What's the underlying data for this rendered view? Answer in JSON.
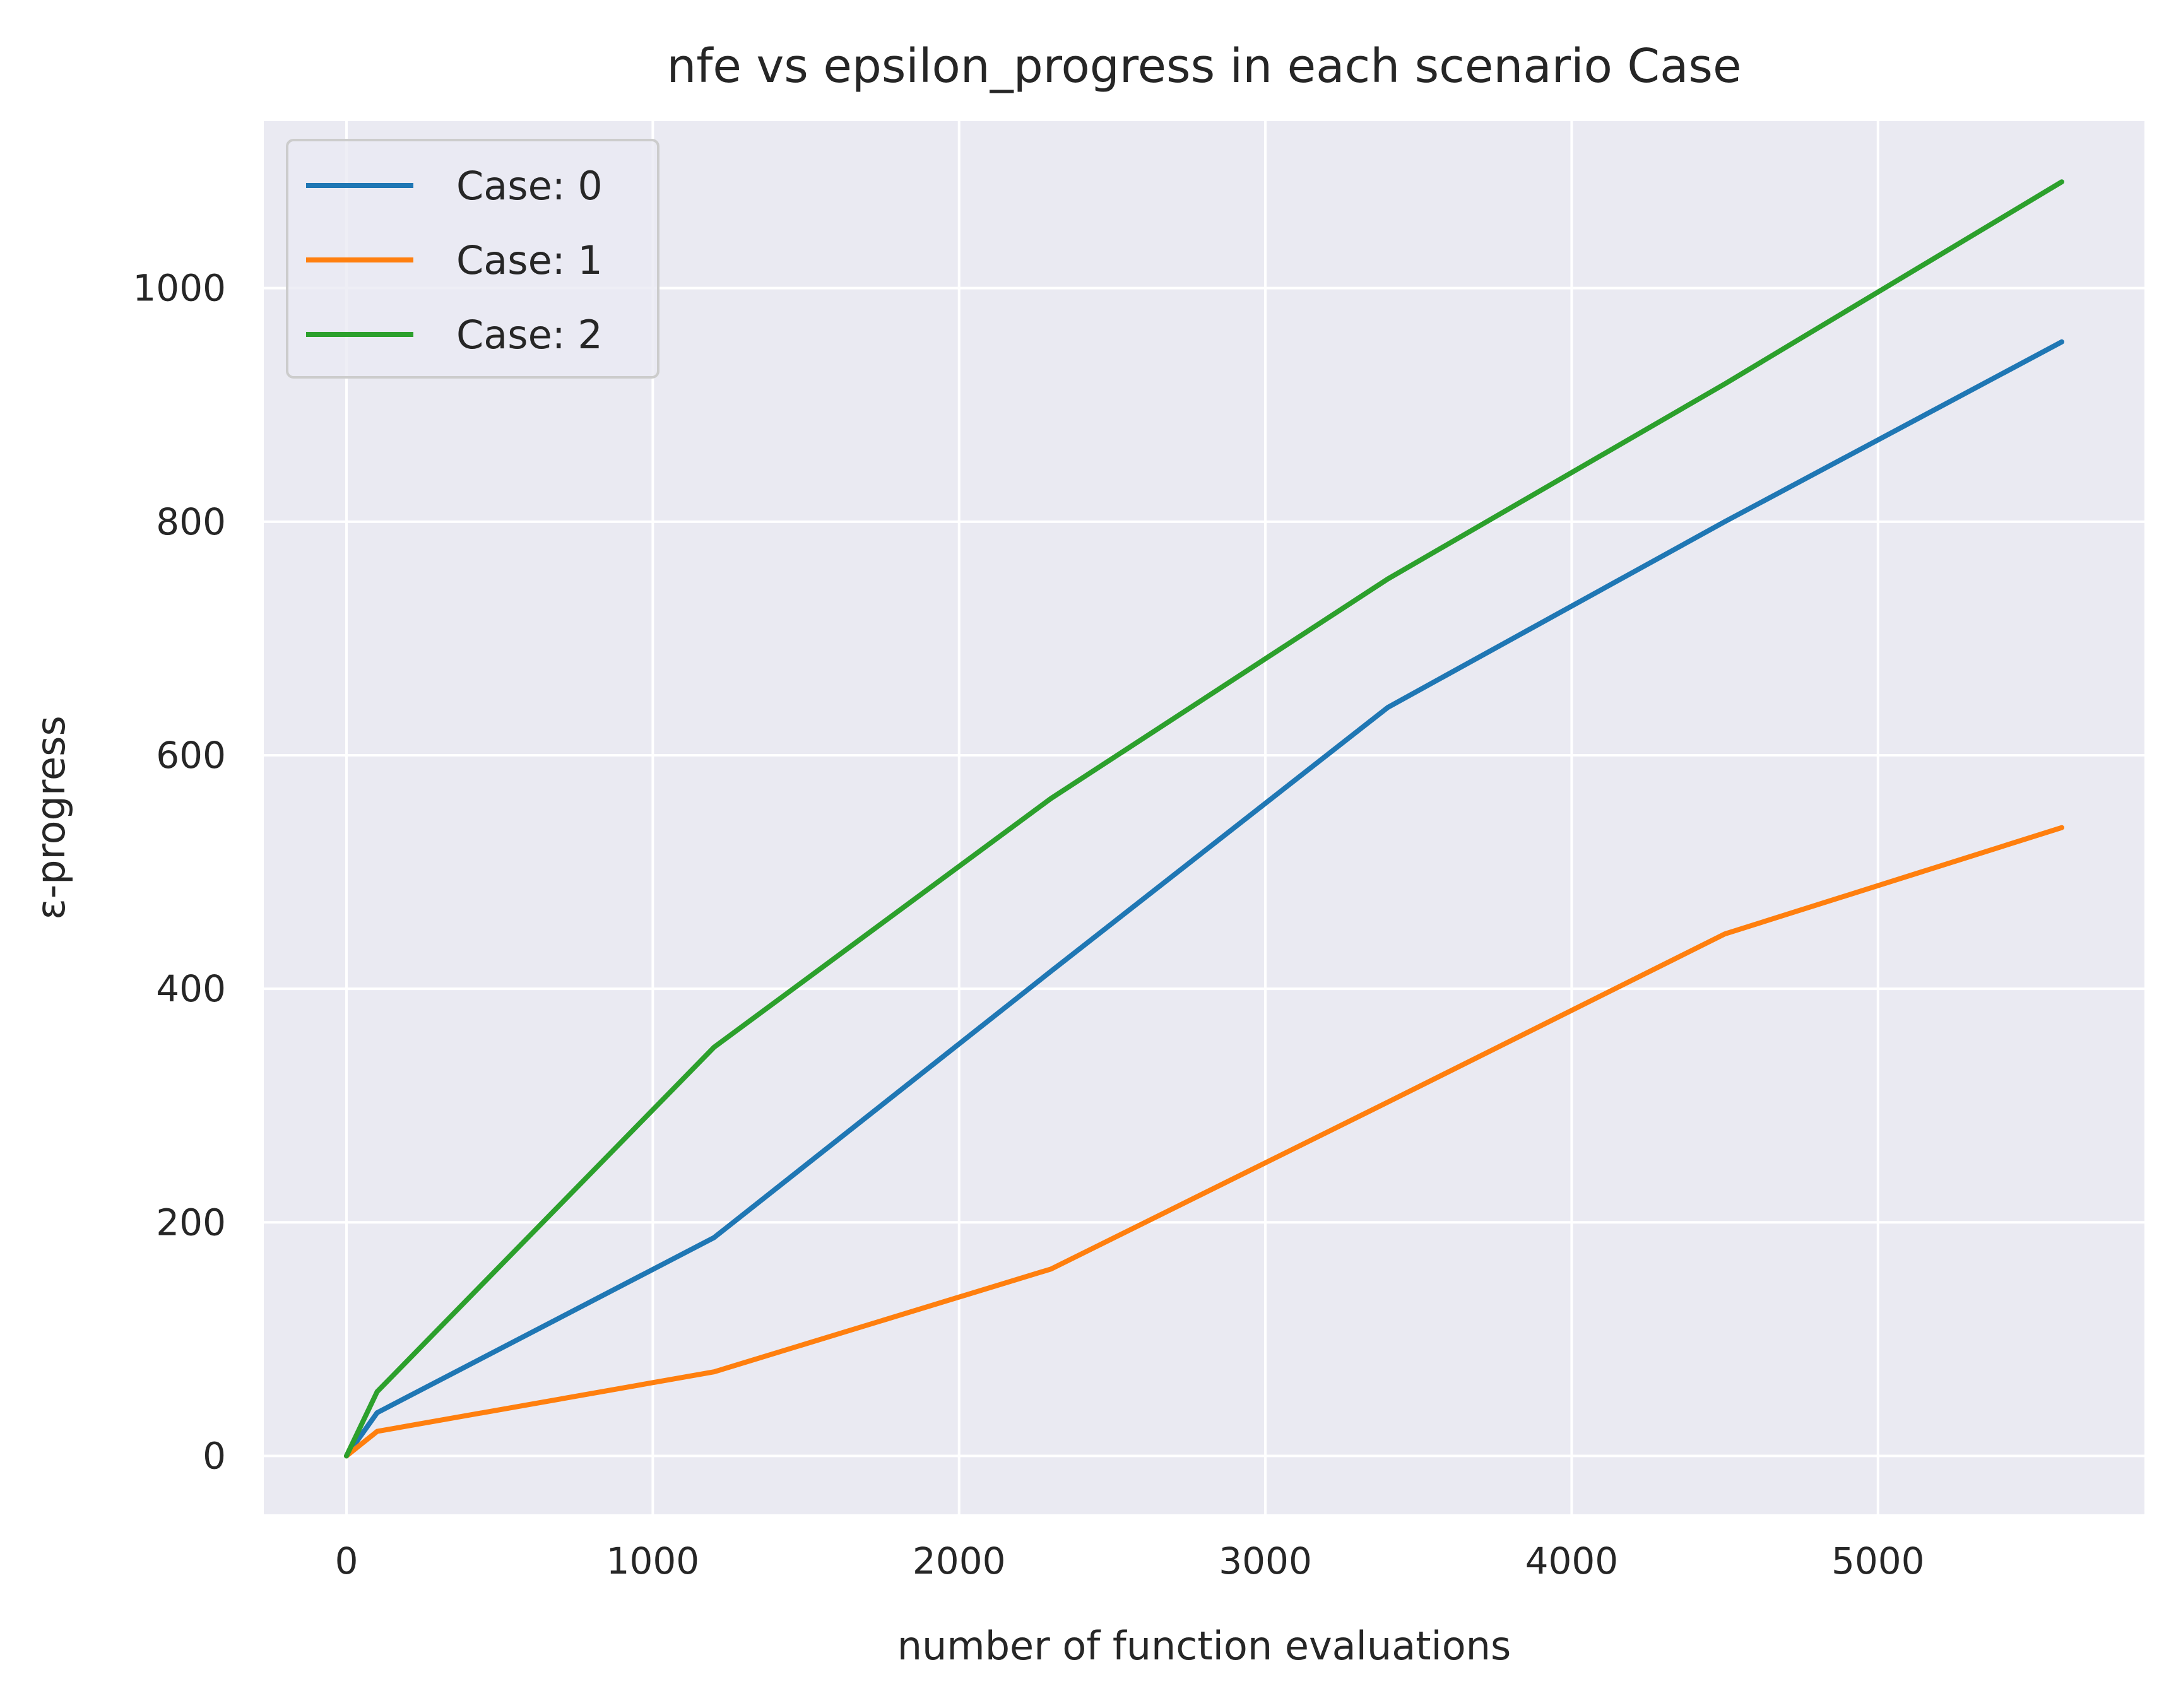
{
  "chart_data": {
    "type": "line",
    "title": "nfe vs epsilon_progress in each scenario Case",
    "xlabel": "number of function evaluations",
    "ylabel": "ε-progress",
    "xlim": [
      -270,
      5870
    ],
    "ylim": [
      -50,
      1143
    ],
    "xticks": [
      0,
      1000,
      2000,
      3000,
      4000,
      5000
    ],
    "yticks": [
      0,
      200,
      400,
      600,
      800,
      1000
    ],
    "grid": true,
    "legend_position": "top-left",
    "series": [
      {
        "name": "Case: 0",
        "color": "#1f77b4",
        "x": [
          0,
          100,
          1200,
          2300,
          3400,
          4500,
          5600
        ],
        "y": [
          0,
          37,
          187,
          415,
          641,
          800,
          954
        ]
      },
      {
        "name": "Case: 1",
        "color": "#ff7f0e",
        "x": [
          0,
          100,
          1200,
          2300,
          3400,
          4500,
          5600
        ],
        "y": [
          0,
          21,
          72,
          160,
          303,
          447,
          538
        ]
      },
      {
        "name": "Case: 2",
        "color": "#2ca02c",
        "x": [
          0,
          100,
          1200,
          2300,
          3400,
          4500,
          5600
        ],
        "y": [
          0,
          55,
          350,
          563,
          751,
          918,
          1091
        ]
      }
    ]
  },
  "colors": {
    "plot_background": "#eaeaf2",
    "grid": "#ffffff",
    "text": "#262626"
  }
}
